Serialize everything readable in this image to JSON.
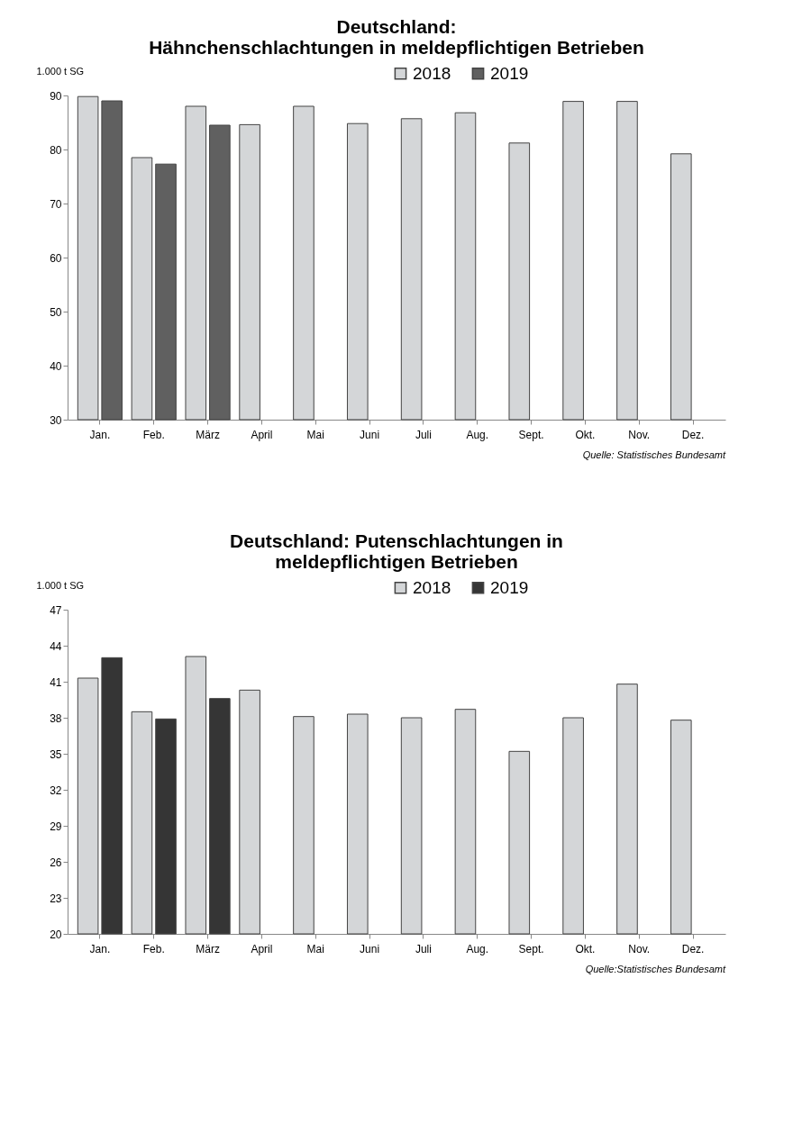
{
  "chart_data": [
    {
      "type": "bar",
      "title": "Deutschland:\nHähnchenschlachtungen in meldepflichtigen Betrieben",
      "ylabel": "1.000 t SG",
      "categories": [
        "Jan.",
        "Feb.",
        "März",
        "April",
        "Mai",
        "Juni",
        "Juli",
        "Aug.",
        "Sept.",
        "Okt.",
        "Nov.",
        "Dez."
      ],
      "series": [
        {
          "name": "2018",
          "color": "#d4d6d8",
          "values": [
            89.8,
            78.5,
            88.0,
            84.6,
            88.0,
            84.8,
            85.7,
            86.8,
            81.2,
            88.9,
            88.9,
            79.2
          ]
        },
        {
          "name": "2019",
          "color": "#606060",
          "values": [
            89.0,
            77.3,
            84.5,
            null,
            null,
            null,
            null,
            null,
            null,
            null,
            null,
            null
          ]
        }
      ],
      "ylim": [
        30,
        90
      ],
      "yticks": [
        30,
        40,
        50,
        60,
        70,
        80,
        90
      ],
      "legend": "top",
      "annotations": [
        "Quelle: Statistisches Bundesamt"
      ]
    },
    {
      "type": "bar",
      "title": "Deutschland: Putenschlachtungen in\nmeldepflichtigen Betrieben",
      "ylabel": "1.000 t SG",
      "categories": [
        "Jan.",
        "Feb.",
        "März",
        "April",
        "Mai",
        "Juni",
        "Juli",
        "Aug.",
        "Sept.",
        "Okt.",
        "Nov.",
        "Dez."
      ],
      "series": [
        {
          "name": "2018",
          "color": "#d4d6d8",
          "values": [
            41.3,
            38.5,
            43.1,
            40.3,
            38.1,
            38.3,
            38.0,
            38.7,
            35.2,
            38.0,
            40.8,
            37.8
          ]
        },
        {
          "name": "2019",
          "color": "#353535",
          "values": [
            43.0,
            37.9,
            39.6,
            null,
            null,
            null,
            null,
            null,
            null,
            null,
            null,
            null
          ]
        }
      ],
      "ylim": [
        20,
        47
      ],
      "yticks": [
        20,
        23,
        26,
        29,
        32,
        35,
        38,
        41,
        44,
        47
      ],
      "legend": "top",
      "annotations": [
        "Quelle:Statistisches Bundesamt"
      ]
    }
  ]
}
